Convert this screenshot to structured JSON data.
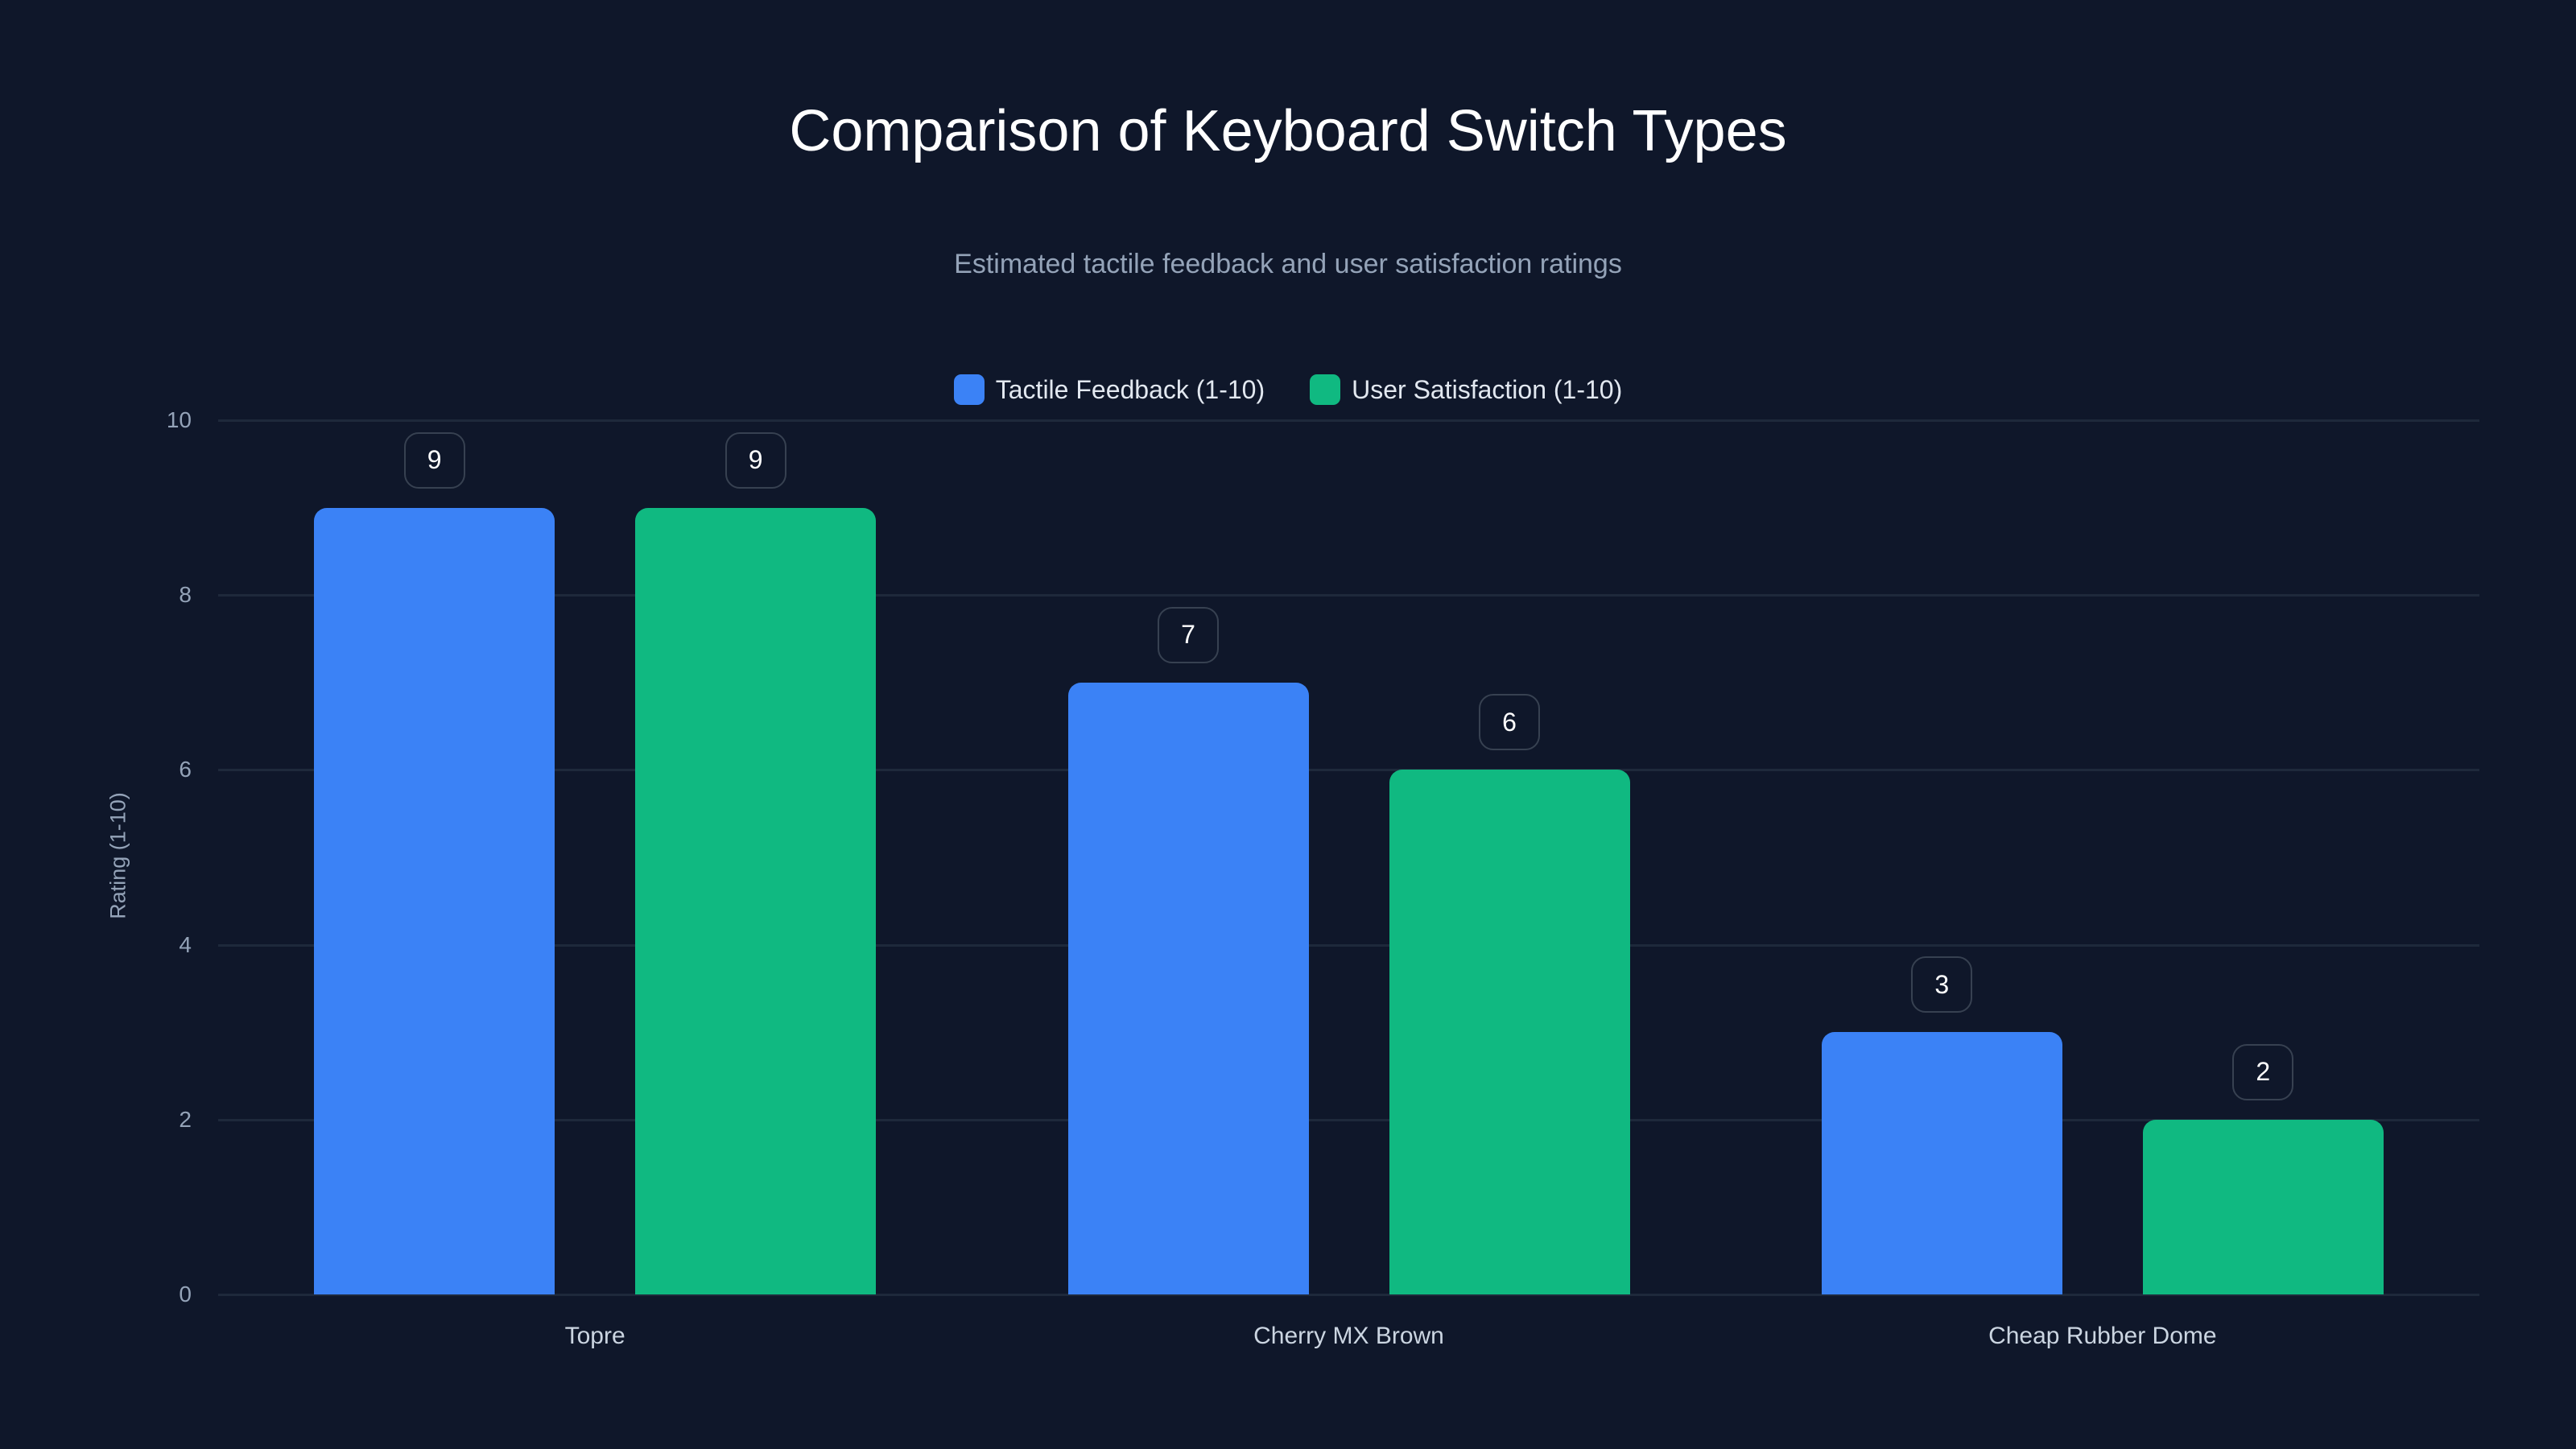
{
  "chart_data": {
    "type": "bar",
    "title": "Comparison of Keyboard Switch Types",
    "subtitle": "Estimated tactile feedback and user satisfaction ratings",
    "categories": [
      "Topre",
      "Cherry MX Brown",
      "Cheap Rubber Dome"
    ],
    "series": [
      {
        "name": "Tactile Feedback (1-10)",
        "color": "#3b82f6",
        "values": [
          9,
          7,
          3
        ]
      },
      {
        "name": "User Satisfaction (1-10)",
        "color": "#10b981",
        "values": [
          9,
          6,
          2
        ]
      }
    ],
    "xlabel": "",
    "ylabel": "Rating (1-10)",
    "ylim": [
      0,
      10
    ],
    "yticks": [
      0,
      2,
      4,
      6,
      8,
      10
    ],
    "grid": true,
    "legend_position": "top-center",
    "data_labels": true
  },
  "colors": {
    "background": "#0f172a",
    "grid": "#1e293b"
  }
}
